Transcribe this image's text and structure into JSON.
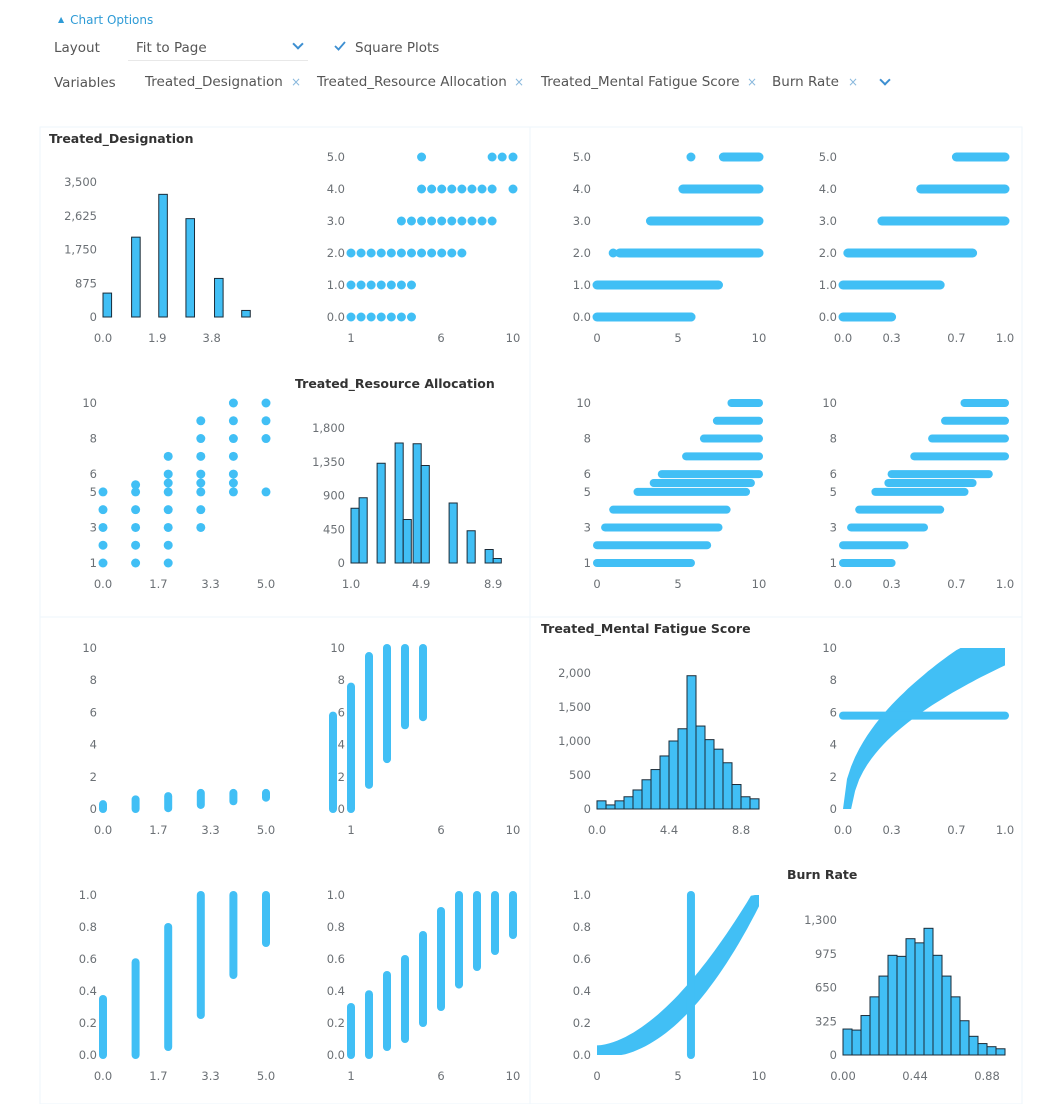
{
  "options": {
    "toggle_label": "Chart Options",
    "layout_label": "Layout",
    "layout_value": "Fit to Page",
    "square_label": "Square Plots",
    "variables_label": "Variables",
    "chips": [
      "Treated_Designation",
      "Treated_Resource Allocation",
      "Treated_Mental Fatigue Score",
      "Burn Rate"
    ]
  },
  "colors": {
    "fill": "#41bff5",
    "stroke": "#1a2b38",
    "tick": "#6b7075",
    "title": "#333333",
    "accent": "#3d8fd1"
  },
  "chart_data": {
    "type": "scatter-matrix",
    "variables": [
      {
        "name": "Treated_Designation",
        "range": [
          0,
          5
        ]
      },
      {
        "name": "Treated_Resource Allocation",
        "range": [
          1,
          10
        ]
      },
      {
        "name": "Treated_Mental Fatigue Score",
        "range": [
          0,
          10
        ]
      },
      {
        "name": "Burn Rate",
        "range": [
          0,
          1
        ]
      }
    ],
    "y_ticks": [
      [
        "0.0",
        "1.0",
        "2.0",
        "3.0",
        "4.0",
        "5.0"
      ],
      [
        "1",
        "3",
        "5",
        "6",
        "8",
        "10"
      ],
      [
        "0",
        "2",
        "4",
        "6",
        "8",
        "10"
      ],
      [
        "0.0",
        "0.2",
        "0.4",
        "0.6",
        "0.8",
        "1.0"
      ]
    ],
    "x_ticks": [
      [
        "0.0",
        "1.7",
        "3.3",
        "5.0"
      ],
      [
        "1",
        "6",
        "10"
      ],
      [
        "0",
        "5",
        "10"
      ],
      [
        "0.0",
        "0.3",
        "0.7",
        "1.0"
      ]
    ],
    "histograms": [
      {
        "var": "Treated_Designation",
        "y_ticks": [
          "0",
          "875",
          "1,750",
          "2,625",
          "3,500"
        ],
        "y_max": 3500,
        "x_ticks": [
          "0.0",
          "1.9",
          "3.8"
        ],
        "x_range": [
          0,
          5.7
        ],
        "bins": [
          [
            0,
            0.3,
            620
          ],
          [
            1.0,
            1.3,
            2070
          ],
          [
            1.95,
            2.25,
            3180
          ],
          [
            2.9,
            3.2,
            2550
          ],
          [
            3.9,
            4.2,
            1000
          ],
          [
            4.85,
            5.15,
            170
          ]
        ]
      },
      {
        "var": "Treated_Resource Allocation",
        "y_ticks": [
          "0",
          "450",
          "900",
          "1,350",
          "1,800"
        ],
        "y_max": 1800,
        "x_ticks": [
          "1.0",
          "4.9",
          "8.9"
        ],
        "x_range": [
          1,
          10
        ],
        "bins": [
          [
            1.0,
            1.45,
            730
          ],
          [
            1.45,
            1.9,
            870
          ],
          [
            2.45,
            2.9,
            1330
          ],
          [
            3.45,
            3.9,
            1600
          ],
          [
            3.9,
            4.35,
            580
          ],
          [
            4.45,
            4.9,
            1590
          ],
          [
            4.9,
            5.35,
            1300
          ],
          [
            6.45,
            6.9,
            800
          ],
          [
            7.45,
            7.9,
            430
          ],
          [
            8.45,
            8.9,
            180
          ],
          [
            8.9,
            9.35,
            60
          ]
        ]
      },
      {
        "var": "Treated_Mental Fatigue Score",
        "y_ticks": [
          "0",
          "500",
          "1,000",
          "1,500",
          "2,000"
        ],
        "y_max": 2000,
        "x_ticks": [
          "0.0",
          "4.4",
          "8.8"
        ],
        "x_range": [
          0,
          9.9
        ],
        "bins": [
          [
            0,
            0.55,
            120
          ],
          [
            0.55,
            1.1,
            60
          ],
          [
            1.1,
            1.65,
            120
          ],
          [
            1.65,
            2.2,
            180
          ],
          [
            2.2,
            2.75,
            280
          ],
          [
            2.75,
            3.3,
            430
          ],
          [
            3.3,
            3.85,
            580
          ],
          [
            3.85,
            4.4,
            780
          ],
          [
            4.4,
            4.95,
            1000
          ],
          [
            4.95,
            5.5,
            1180
          ],
          [
            5.5,
            6.05,
            1960
          ],
          [
            6.05,
            6.6,
            1220
          ],
          [
            6.6,
            7.15,
            1020
          ],
          [
            7.15,
            7.7,
            880
          ],
          [
            7.7,
            8.25,
            680
          ],
          [
            8.25,
            8.8,
            360
          ],
          [
            8.8,
            9.35,
            180
          ],
          [
            9.35,
            9.9,
            150
          ]
        ]
      },
      {
        "var": "Burn Rate",
        "y_ticks": [
          "0",
          "325",
          "650",
          "975",
          "1,300"
        ],
        "y_max": 1300,
        "x_ticks": [
          "0.00",
          "0.44",
          "0.88"
        ],
        "x_range": [
          0,
          0.99
        ],
        "bins": [
          [
            0,
            0.055,
            250
          ],
          [
            0.055,
            0.11,
            240
          ],
          [
            0.11,
            0.165,
            380
          ],
          [
            0.165,
            0.22,
            560
          ],
          [
            0.22,
            0.275,
            760
          ],
          [
            0.275,
            0.33,
            960
          ],
          [
            0.33,
            0.385,
            950
          ],
          [
            0.385,
            0.44,
            1120
          ],
          [
            0.44,
            0.495,
            1080
          ],
          [
            0.495,
            0.55,
            1220
          ],
          [
            0.55,
            0.605,
            960
          ],
          [
            0.605,
            0.66,
            760
          ],
          [
            0.66,
            0.715,
            560
          ],
          [
            0.715,
            0.77,
            330
          ],
          [
            0.77,
            0.825,
            180
          ],
          [
            0.825,
            0.88,
            110
          ],
          [
            0.88,
            0.935,
            80
          ],
          [
            0.935,
            0.99,
            60
          ]
        ]
      }
    ],
    "scatter": {
      "0-1": {
        "dots": [
          [
            1,
            0
          ],
          [
            1.56,
            0
          ],
          [
            2.12,
            0
          ],
          [
            2.68,
            0
          ],
          [
            3.24,
            0
          ],
          [
            3.8,
            0
          ],
          [
            4.36,
            0
          ],
          [
            1,
            1
          ],
          [
            1.56,
            1
          ],
          [
            2.12,
            1
          ],
          [
            2.68,
            1
          ],
          [
            3.24,
            1
          ],
          [
            3.8,
            1
          ],
          [
            4.36,
            1
          ],
          [
            1,
            2
          ],
          [
            1.56,
            2
          ],
          [
            2.12,
            2
          ],
          [
            2.68,
            2
          ],
          [
            3.24,
            2
          ],
          [
            3.8,
            2
          ],
          [
            4.36,
            2
          ],
          [
            4.92,
            2
          ],
          [
            5.48,
            2
          ],
          [
            6.04,
            2
          ],
          [
            6.6,
            2
          ],
          [
            7.16,
            2
          ],
          [
            3.8,
            3
          ],
          [
            4.36,
            3
          ],
          [
            4.92,
            3
          ],
          [
            5.48,
            3
          ],
          [
            6.04,
            3
          ],
          [
            6.6,
            3
          ],
          [
            7.16,
            3
          ],
          [
            7.72,
            3
          ],
          [
            8.28,
            3
          ],
          [
            8.84,
            3
          ],
          [
            4.92,
            4
          ],
          [
            5.48,
            4
          ],
          [
            6.04,
            4
          ],
          [
            6.6,
            4
          ],
          [
            7.16,
            4
          ],
          [
            7.72,
            4
          ],
          [
            8.28,
            4
          ],
          [
            8.84,
            4
          ],
          [
            10,
            4
          ],
          [
            4.92,
            5
          ],
          [
            8.84,
            5
          ],
          [
            9.4,
            5
          ],
          [
            10,
            5
          ]
        ]
      },
      "0-2": {
        "bands": [
          [
            0,
            0,
            5.8
          ],
          [
            1,
            0,
            7.5
          ],
          [
            2,
            1.4,
            10
          ],
          [
            3,
            3.3,
            10
          ],
          [
            4,
            5.3,
            10
          ],
          [
            5,
            7.8,
            10
          ]
        ],
        "dots": [
          [
            5.8,
            0
          ],
          [
            5.8,
            1
          ],
          [
            5.8,
            2
          ],
          [
            5.8,
            3
          ],
          [
            5.8,
            4
          ],
          [
            5.8,
            5
          ],
          [
            1.0,
            2
          ],
          [
            1.8,
            2
          ]
        ]
      },
      "0-3": {
        "bands": [
          [
            0,
            0,
            0.3
          ],
          [
            1,
            0,
            0.6
          ],
          [
            2,
            0.03,
            0.8
          ],
          [
            3,
            0.24,
            1.0
          ],
          [
            4,
            0.48,
            1.0
          ],
          [
            5,
            0.7,
            1.0
          ]
        ]
      },
      "1-0": {
        "dots": [
          [
            0,
            1
          ],
          [
            0,
            2
          ],
          [
            0,
            3
          ],
          [
            0,
            4
          ],
          [
            0,
            5
          ],
          [
            1,
            1
          ],
          [
            1,
            2
          ],
          [
            1,
            3
          ],
          [
            1,
            4
          ],
          [
            1,
            5
          ],
          [
            1,
            5.4
          ],
          [
            2,
            1
          ],
          [
            2,
            2
          ],
          [
            2,
            3
          ],
          [
            2,
            4
          ],
          [
            2,
            5
          ],
          [
            2,
            5.5
          ],
          [
            2,
            6
          ],
          [
            2,
            7
          ],
          [
            3,
            3
          ],
          [
            3,
            4
          ],
          [
            3,
            5
          ],
          [
            3,
            5.5
          ],
          [
            3,
            6
          ],
          [
            3,
            7
          ],
          [
            3,
            8
          ],
          [
            3,
            9
          ],
          [
            4,
            5
          ],
          [
            4,
            5.5
          ],
          [
            4,
            6
          ],
          [
            4,
            7
          ],
          [
            4,
            8
          ],
          [
            4,
            9
          ],
          [
            4,
            10
          ],
          [
            5,
            5
          ],
          [
            5,
            8
          ],
          [
            5,
            9
          ],
          [
            5,
            10
          ]
        ]
      },
      "1-2": {
        "bands": [
          [
            1,
            0,
            5.8
          ],
          [
            2,
            0,
            6.8
          ],
          [
            3,
            0.5,
            7.5
          ],
          [
            4,
            1.0,
            8
          ],
          [
            5,
            2.5,
            9.2
          ],
          [
            5.5,
            3.5,
            9.5
          ],
          [
            6,
            4.0,
            10
          ],
          [
            7,
            5.5,
            10
          ],
          [
            8,
            6.6,
            10
          ],
          [
            9,
            7.4,
            10
          ],
          [
            10,
            8.3,
            10
          ]
        ]
      },
      "1-3": {
        "bands": [
          [
            1,
            0,
            0.3
          ],
          [
            2,
            0,
            0.38
          ],
          [
            3,
            0.05,
            0.5
          ],
          [
            4,
            0.1,
            0.6
          ],
          [
            5,
            0.2,
            0.75
          ],
          [
            5.5,
            0.28,
            0.8
          ],
          [
            6,
            0.3,
            0.9
          ],
          [
            7,
            0.44,
            1.0
          ],
          [
            8,
            0.55,
            1.0
          ],
          [
            9,
            0.63,
            1.0
          ],
          [
            10,
            0.75,
            1.0
          ]
        ]
      },
      "2-0": {
        "bands": [
          [
            0,
            0,
            0.3
          ],
          [
            1,
            0,
            0.6
          ],
          [
            2,
            0.05,
            0.8
          ],
          [
            3,
            0.25,
            1.0
          ],
          [
            4,
            0.48,
            1.0
          ],
          [
            5,
            0.7,
            1.0
          ]
        ]
      },
      "2-1": {
        "bands": [
          [
            0,
            0,
            5.8
          ],
          [
            1,
            0,
            7.6
          ],
          [
            2,
            1.5,
            9.5
          ],
          [
            3,
            3.1,
            10
          ],
          [
            4,
            5.2,
            10
          ],
          [
            5,
            5.7,
            10
          ]
        ]
      },
      "2-3": {
        "curve": true,
        "line": [
          0,
          0.63,
          1.0
        ]
      },
      "3-0": {
        "bands": [
          [
            0,
            0,
            0.35
          ],
          [
            1,
            0,
            0.58
          ],
          [
            2,
            0.05,
            0.8
          ],
          [
            3,
            0.25,
            1.0
          ],
          [
            4,
            0.5,
            1.0
          ],
          [
            5,
            0.7,
            1.0
          ]
        ]
      },
      "3-1": {
        "bands": [
          [
            1,
            0,
            0.3
          ],
          [
            2,
            0,
            0.38
          ],
          [
            3,
            0.05,
            0.5
          ],
          [
            4,
            0.1,
            0.6
          ],
          [
            5,
            0.2,
            0.75
          ],
          [
            6,
            0.3,
            0.9
          ],
          [
            7,
            0.44,
            1.0
          ],
          [
            8,
            0.55,
            1.0
          ],
          [
            9,
            0.65,
            1.0
          ],
          [
            10,
            0.75,
            1.0
          ]
        ]
      },
      "3-2": {
        "curve": true,
        "vline": [
          5.8,
          0,
          1.0
        ]
      }
    }
  }
}
